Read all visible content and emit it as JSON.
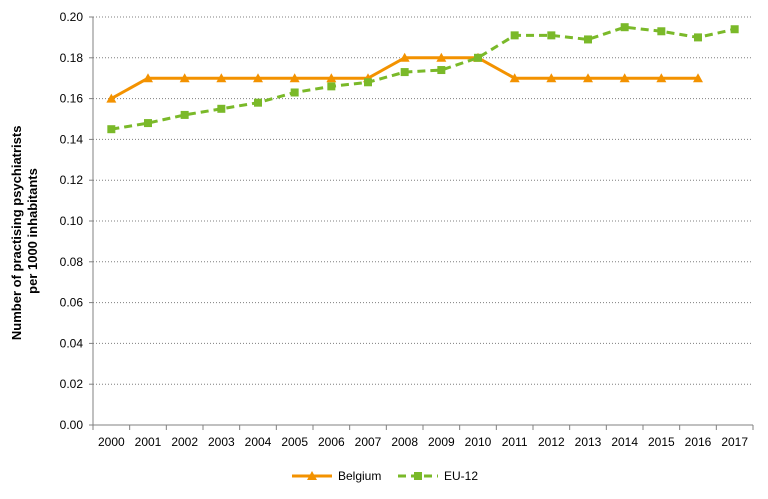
{
  "chart_data": {
    "type": "line",
    "ylabel_lines": [
      "Number of practising psychiatrists",
      "per 1000 inhabitants"
    ],
    "xlabel": "",
    "x": [
      "2000",
      "2001",
      "2002",
      "2003",
      "2004",
      "2005",
      "2006",
      "2007",
      "2008",
      "2009",
      "2010",
      "2011",
      "2012",
      "2013",
      "2014",
      "2015",
      "2016",
      "2017"
    ],
    "ylim": [
      0,
      0.2
    ],
    "yticks": [
      "0.00",
      "0.02",
      "0.04",
      "0.06",
      "0.08",
      "0.10",
      "0.12",
      "0.14",
      "0.16",
      "0.18",
      "0.20"
    ],
    "grid": "horizontal dotted",
    "legend_position": "bottom-center",
    "series": [
      {
        "name": "Belgium",
        "color": "#F39200",
        "marker": "triangle",
        "line_style": "solid",
        "values": [
          0.16,
          0.17,
          0.17,
          0.17,
          0.17,
          0.17,
          0.17,
          0.17,
          0.18,
          0.18,
          0.18,
          0.17,
          0.17,
          0.17,
          0.17,
          0.17,
          0.17,
          null
        ]
      },
      {
        "name": "EU-12",
        "color": "#7AB929",
        "marker": "square",
        "line_style": "dashed",
        "values": [
          0.145,
          0.148,
          0.152,
          0.155,
          0.158,
          0.163,
          0.166,
          0.168,
          0.173,
          0.174,
          0.18,
          0.191,
          0.191,
          0.189,
          0.195,
          0.193,
          0.19,
          0.194
        ]
      }
    ]
  }
}
